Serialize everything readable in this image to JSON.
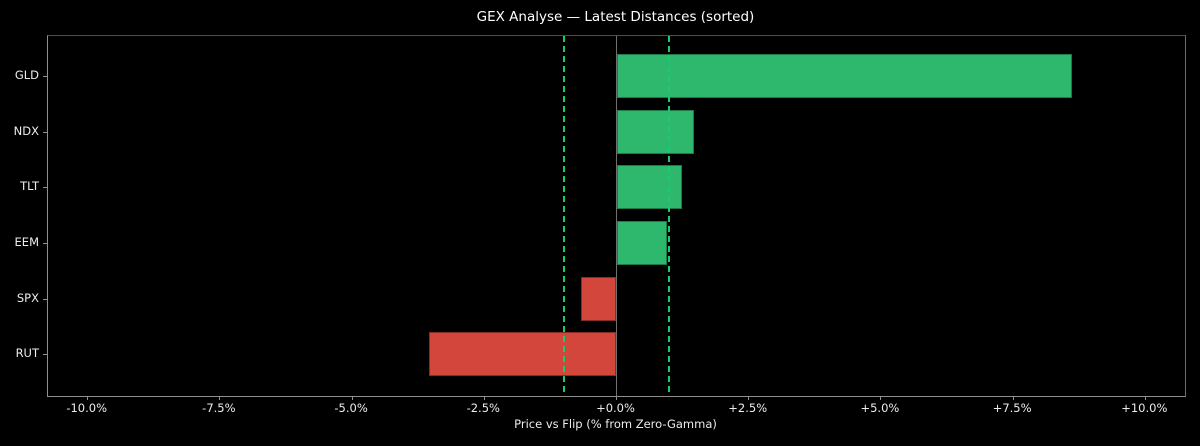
{
  "chart_data": {
    "type": "bar",
    "orientation": "horizontal",
    "title": "GEX Analyse — Latest Distances (sorted)",
    "xlabel": "Price vs Flip (% from Zero-Gamma)",
    "ylabel": "",
    "categories": [
      "GLD",
      "NDX",
      "TLT",
      "EEM",
      "SPX",
      "RUT"
    ],
    "values": [
      8.62,
      1.46,
      1.23,
      0.96,
      -0.68,
      -3.54
    ],
    "units": "percent",
    "xlim": [
      -10.75,
      10.75
    ],
    "x_ticks": [
      -10,
      -7.5,
      -5,
      -2.5,
      0,
      2.5,
      5,
      7.5,
      10
    ],
    "x_tick_labels": [
      "-10.0%",
      "-7.5%",
      "-5.0%",
      "-2.5%",
      "+0.0%",
      "+2.5%",
      "+5.0%",
      "+7.5%",
      "+10.0%"
    ],
    "reference_lines": [
      {
        "x": -1.0,
        "style": "dashed",
        "name": "flip-threshold-negative"
      },
      {
        "x": 1.0,
        "style": "dashed",
        "name": "flip-threshold-positive"
      },
      {
        "x": 0.0,
        "style": "solid",
        "name": "zero-gamma"
      }
    ],
    "grid": false,
    "legend": false,
    "colors": {
      "background": "#000000",
      "positive_bar": "#2eb86d",
      "negative_bar": "#d2463b",
      "reference_dashed": "#18cb6c",
      "zero_line": "#707070",
      "spine": "#909090",
      "text": "#ececec",
      "title_text": "#ffffff"
    }
  }
}
